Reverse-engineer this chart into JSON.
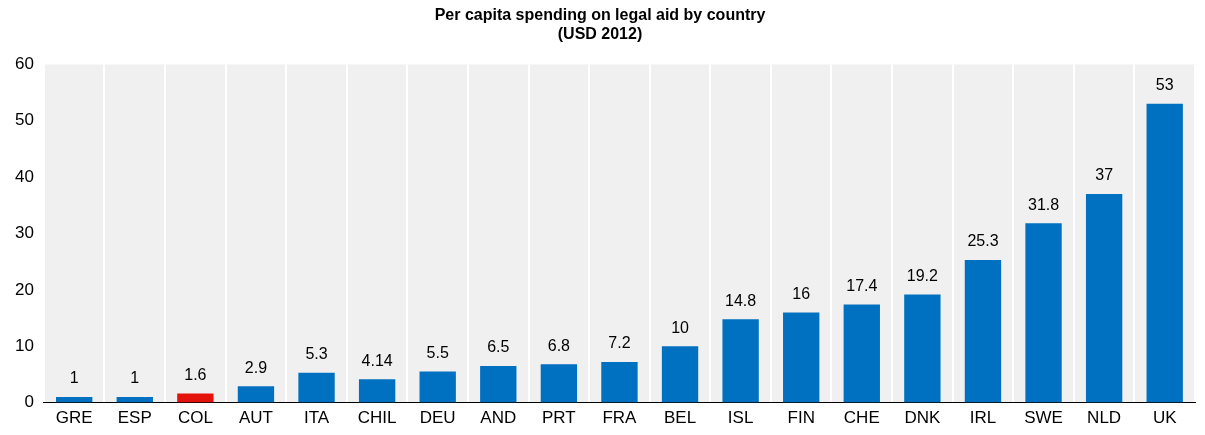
{
  "chart_data": {
    "type": "bar",
    "title": "Per capita spending on legal aid by country",
    "subtitle": "(USD 2012)",
    "categories": [
      "GRE",
      "ESP",
      "COL",
      "AUT",
      "ITA",
      "CHIL",
      "DEU",
      "AND",
      "PRT",
      "FRA",
      "BEL",
      "ISL",
      "FIN",
      "CHE",
      "DNK",
      "IRL",
      "SWE",
      "NLD",
      "UK"
    ],
    "values": [
      1,
      1,
      1.6,
      2.9,
      5.3,
      4.14,
      5.5,
      6.5,
      6.8,
      7.2,
      10,
      14.8,
      16,
      17.4,
      19.2,
      25.3,
      31.8,
      37,
      53
    ],
    "colors": [
      "#0070c0",
      "#0070c0",
      "#e3120b",
      "#0070c0",
      "#0070c0",
      "#0070c0",
      "#0070c0",
      "#0070c0",
      "#0070c0",
      "#0070c0",
      "#0070c0",
      "#0070c0",
      "#0070c0",
      "#0070c0",
      "#0070c0",
      "#0070c0",
      "#0070c0",
      "#0070c0",
      "#0070c0"
    ],
    "ylim": [
      0,
      60
    ],
    "yticks": [
      0,
      10,
      20,
      30,
      40,
      50,
      60
    ],
    "grid": "x",
    "data_labels": true
  }
}
